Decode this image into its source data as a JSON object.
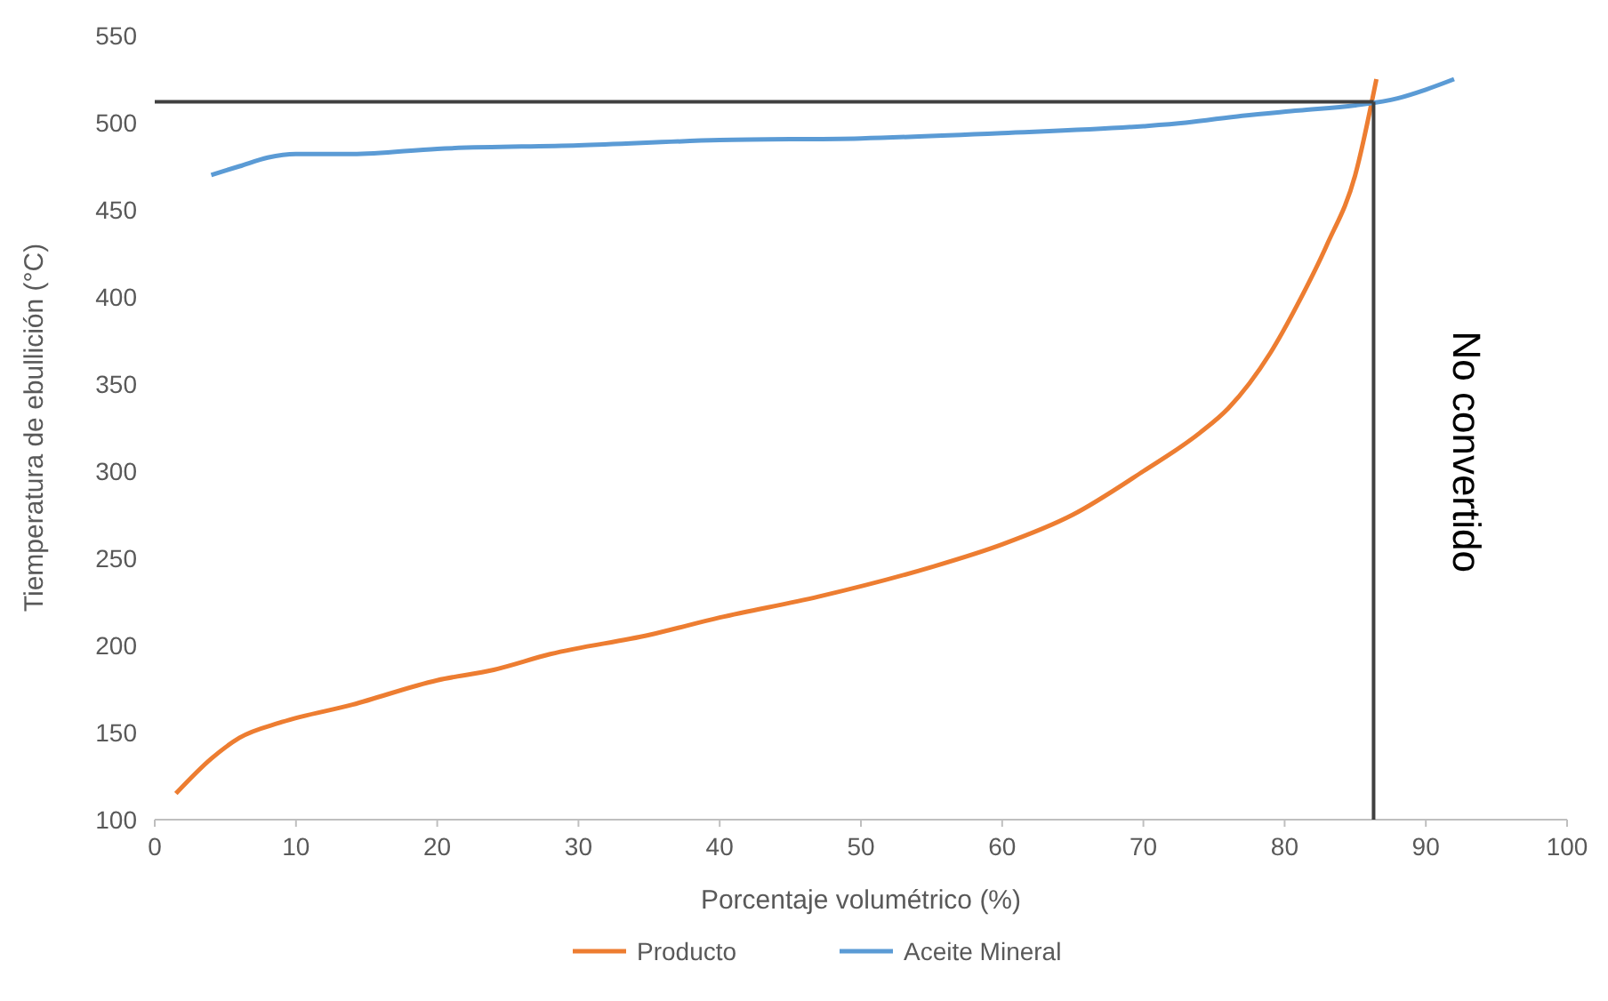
{
  "chart_data": {
    "type": "line",
    "xlabel": "Porcentaje volumétrico (%)",
    "ylabel": "Tiemperatura de ebullición (°C)",
    "xlim": [
      0,
      100
    ],
    "xticks": [
      0,
      10,
      20,
      30,
      40,
      50,
      60,
      70,
      80,
      90,
      100
    ],
    "ylim": [
      100,
      550
    ],
    "yticks": [
      100,
      150,
      200,
      250,
      300,
      350,
      400,
      450,
      500,
      550
    ],
    "grid": false,
    "legend": "bottom",
    "marker": "none",
    "line_style": "solid",
    "series": [
      {
        "name": "Producto",
        "color": "#ed7d31",
        "x": [
          1.5,
          4,
          6,
          9,
          14,
          20,
          24,
          28,
          35,
          40,
          47,
          55,
          60,
          65,
          70,
          74,
          76,
          79,
          81,
          83,
          85,
          86.5
        ],
        "values": [
          115,
          135,
          147,
          156,
          166,
          180,
          186,
          195,
          206,
          216,
          228,
          245,
          258,
          275,
          300,
          322,
          336,
          368,
          397,
          430,
          470,
          525
        ]
      },
      {
        "name": "Aceite Mineral",
        "color": "#5b9bd5",
        "x": [
          4,
          6,
          8,
          10,
          14,
          20,
          30,
          40,
          50,
          60,
          70,
          73,
          77,
          81,
          85,
          88,
          90,
          92
        ],
        "values": [
          470,
          475,
          480,
          482,
          482,
          485,
          487,
          490,
          491,
          494,
          498,
          500,
          504,
          507,
          510,
          514,
          519,
          525
        ]
      }
    ],
    "ref_lines": [
      {
        "axis": "y",
        "value": 512,
        "color": "#404040"
      },
      {
        "axis": "x",
        "value": 86.3,
        "label": "No convertido",
        "color": "#404040"
      }
    ]
  }
}
